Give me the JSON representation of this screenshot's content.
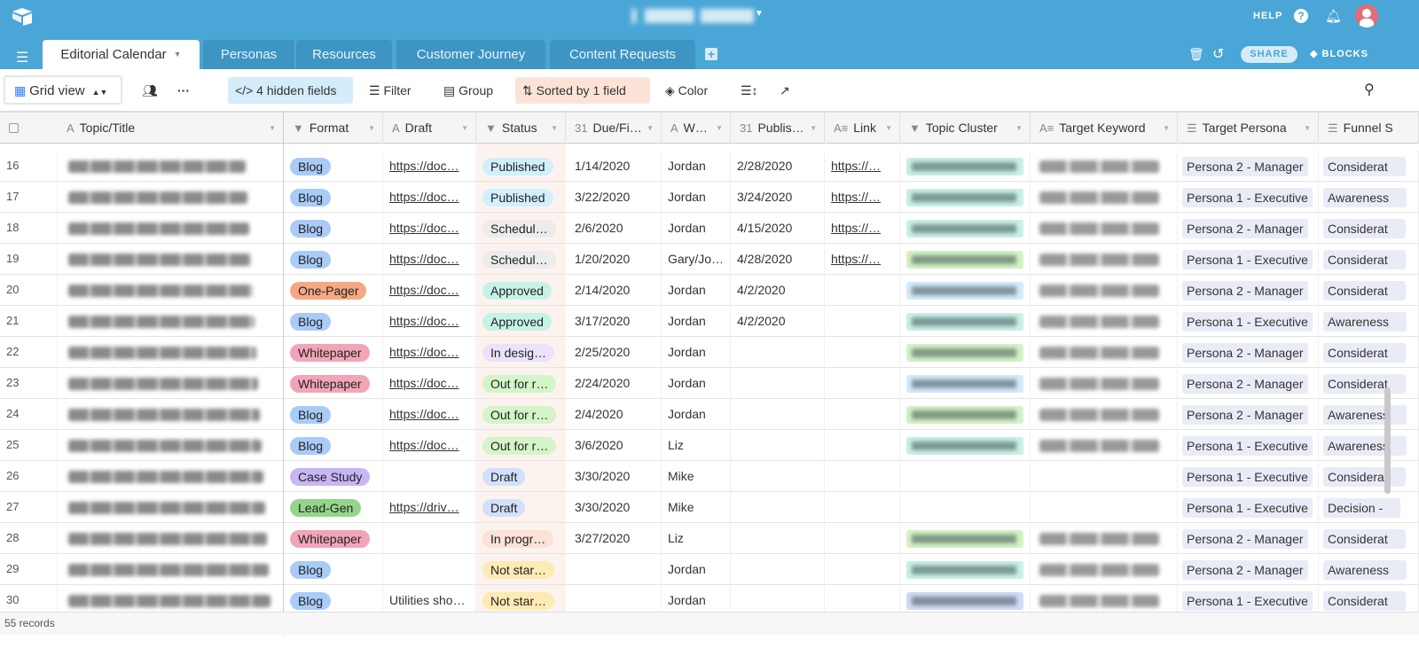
{
  "app": {
    "help": "HELP",
    "share": "SHARE",
    "blocks": "BLOCKS"
  },
  "tabs": [
    {
      "label": "Editorial Calendar",
      "active": true
    },
    {
      "label": "Personas"
    },
    {
      "label": "Resources"
    },
    {
      "label": "Customer Journey"
    },
    {
      "label": "Content Requests"
    }
  ],
  "toolbar": {
    "view": "Grid view",
    "hidden_fields": "4 hidden fields",
    "filter": "Filter",
    "group": "Group",
    "sort": "Sorted by 1 field",
    "color": "Color"
  },
  "columns": [
    {
      "label": "Topic/Title",
      "icon": "A"
    },
    {
      "label": "Format",
      "icon": "▼"
    },
    {
      "label": "Draft",
      "icon": "A"
    },
    {
      "label": "Status",
      "icon": "▼"
    },
    {
      "label": "Due/Fi…",
      "icon": "31"
    },
    {
      "label": "W…",
      "icon": "A"
    },
    {
      "label": "Publis…",
      "icon": "31"
    },
    {
      "label": "Link",
      "icon": "A≡"
    },
    {
      "label": "Topic Cluster",
      "icon": "▼"
    },
    {
      "label": "Target Keyword",
      "icon": "A≡"
    },
    {
      "label": "Target Persona",
      "icon": "☰"
    },
    {
      "label": "Funnel S",
      "icon": "☰"
    }
  ],
  "colors": {
    "formats": {
      "Blog": "#a9cbf7",
      "One-Pager": "#f5a882",
      "Whitepaper": "#f2a5b8",
      "Case Study": "#c8b5f6",
      "Lead-Gen": "#93d68a"
    },
    "statuses": {
      "Published": "#d0f0fd",
      "Schedul…": "#ececec",
      "Approved": "#c6f3e6",
      "In desig…": "#ebe3fc",
      "Out for r…": "#d3f5c9",
      "Draft": "#d2e0fb",
      "In progr…": "#fbe1d6",
      "Not star…": "#feeab5"
    },
    "clusters": {
      "teal": "#c9f1e8",
      "green": "#d4f3c6",
      "blue": "#d5ebfb",
      "indigo": "#d2dbf8"
    }
  },
  "rows": [
    {
      "n": "16",
      "format": "Blog",
      "draft": "https://doc…",
      "draft_link": true,
      "status": "Published",
      "due": "1/14/2020",
      "who": "Jordan",
      "pub": "2/28/2020",
      "link": "https://…",
      "cluster": "teal",
      "kw": true,
      "persona": "Persona 2 - Manager",
      "funnel": "Considerat"
    },
    {
      "n": "17",
      "format": "Blog",
      "draft": "https://doc…",
      "draft_link": true,
      "status": "Published",
      "due": "3/22/2020",
      "who": "Jordan",
      "pub": "3/24/2020",
      "link": "https://…",
      "cluster": "teal",
      "kw": true,
      "persona": "Persona 1 - Executive",
      "funnel": "Awareness"
    },
    {
      "n": "18",
      "format": "Blog",
      "draft": "https://doc…",
      "draft_link": true,
      "status": "Schedul…",
      "due": "2/6/2020",
      "who": "Jordan",
      "pub": "4/15/2020",
      "link": "https://…",
      "cluster": "teal",
      "kw": true,
      "persona": "Persona 2 - Manager",
      "funnel": "Considerat"
    },
    {
      "n": "19",
      "format": "Blog",
      "draft": "https://doc…",
      "draft_link": true,
      "status": "Schedul…",
      "due": "1/20/2020",
      "who": "Gary/Jo…",
      "pub": "4/28/2020",
      "link": "https://…",
      "cluster": "green",
      "kw": true,
      "persona": "Persona 1 - Executive",
      "funnel": "Considerat"
    },
    {
      "n": "20",
      "format": "One-Pager",
      "draft": "https://doc…",
      "draft_link": true,
      "status": "Approved",
      "due": "2/14/2020",
      "who": "Jordan",
      "pub": "4/2/2020",
      "link": "",
      "cluster": "blue",
      "kw": true,
      "persona": "Persona 2 - Manager",
      "funnel": "Considerat"
    },
    {
      "n": "21",
      "format": "Blog",
      "draft": "https://doc…",
      "draft_link": true,
      "status": "Approved",
      "due": "3/17/2020",
      "who": "Jordan",
      "pub": "4/2/2020",
      "link": "",
      "cluster": "teal",
      "kw": true,
      "persona": "Persona 1 - Executive",
      "funnel": "Awareness"
    },
    {
      "n": "22",
      "format": "Whitepaper",
      "draft": "https://doc…",
      "draft_link": true,
      "status": "In desig…",
      "due": "2/25/2020",
      "who": "Jordan",
      "pub": "",
      "link": "",
      "cluster": "green",
      "kw": true,
      "persona": "Persona 2 - Manager",
      "funnel": "Considerat"
    },
    {
      "n": "23",
      "format": "Whitepaper",
      "draft": "https://doc…",
      "draft_link": true,
      "status": "Out for r…",
      "due": "2/24/2020",
      "who": "Jordan",
      "pub": "",
      "link": "",
      "cluster": "blue",
      "kw": true,
      "persona": "Persona 2 - Manager",
      "funnel": "Considerat"
    },
    {
      "n": "24",
      "format": "Blog",
      "draft": "https://doc…",
      "draft_link": true,
      "status": "Out for r…",
      "due": "2/4/2020",
      "who": "Jordan",
      "pub": "",
      "link": "",
      "cluster": "green",
      "kw": true,
      "persona": "Persona 2 - Manager",
      "funnel": "Awareness"
    },
    {
      "n": "25",
      "format": "Blog",
      "draft": "https://doc…",
      "draft_link": true,
      "status": "Out for r…",
      "due": "3/6/2020",
      "who": "Liz",
      "pub": "",
      "link": "",
      "cluster": "teal",
      "kw": true,
      "persona": "Persona 1 - Executive",
      "funnel": "Awareness"
    },
    {
      "n": "26",
      "format": "Case Study",
      "draft": "",
      "draft_link": false,
      "status": "Draft",
      "due": "3/30/2020",
      "who": "Mike",
      "pub": "",
      "link": "",
      "cluster": "",
      "kw": false,
      "persona": "Persona 1 - Executive",
      "funnel": "Considerat"
    },
    {
      "n": "27",
      "format": "Lead-Gen",
      "draft": "https://driv…",
      "draft_link": true,
      "status": "Draft",
      "due": "3/30/2020",
      "who": "Mike",
      "pub": "",
      "link": "",
      "cluster": "",
      "kw": false,
      "persona": "Persona 1 - Executive",
      "funnel": "Decision -"
    },
    {
      "n": "28",
      "format": "Whitepaper",
      "draft": "",
      "draft_link": false,
      "status": "In progr…",
      "due": "3/27/2020",
      "who": "Liz",
      "pub": "",
      "link": "",
      "cluster": "green",
      "kw": true,
      "persona": "Persona 2 - Manager",
      "funnel": "Considerat"
    },
    {
      "n": "29",
      "format": "Blog",
      "draft": "",
      "draft_link": false,
      "status": "Not star…",
      "due": "",
      "who": "Jordan",
      "pub": "",
      "link": "",
      "cluster": "teal",
      "kw": true,
      "persona": "Persona 2 - Manager",
      "funnel": "Awareness"
    },
    {
      "n": "30",
      "format": "Blog",
      "draft": "Utilities sho…",
      "draft_link": false,
      "status": "Not star…",
      "due": "",
      "who": "Jordan",
      "pub": "",
      "link": "",
      "cluster": "indigo",
      "kw": true,
      "persona": "Persona 1 - Executive",
      "funnel": "Considerat"
    }
  ],
  "footer": {
    "records": "55 records"
  }
}
